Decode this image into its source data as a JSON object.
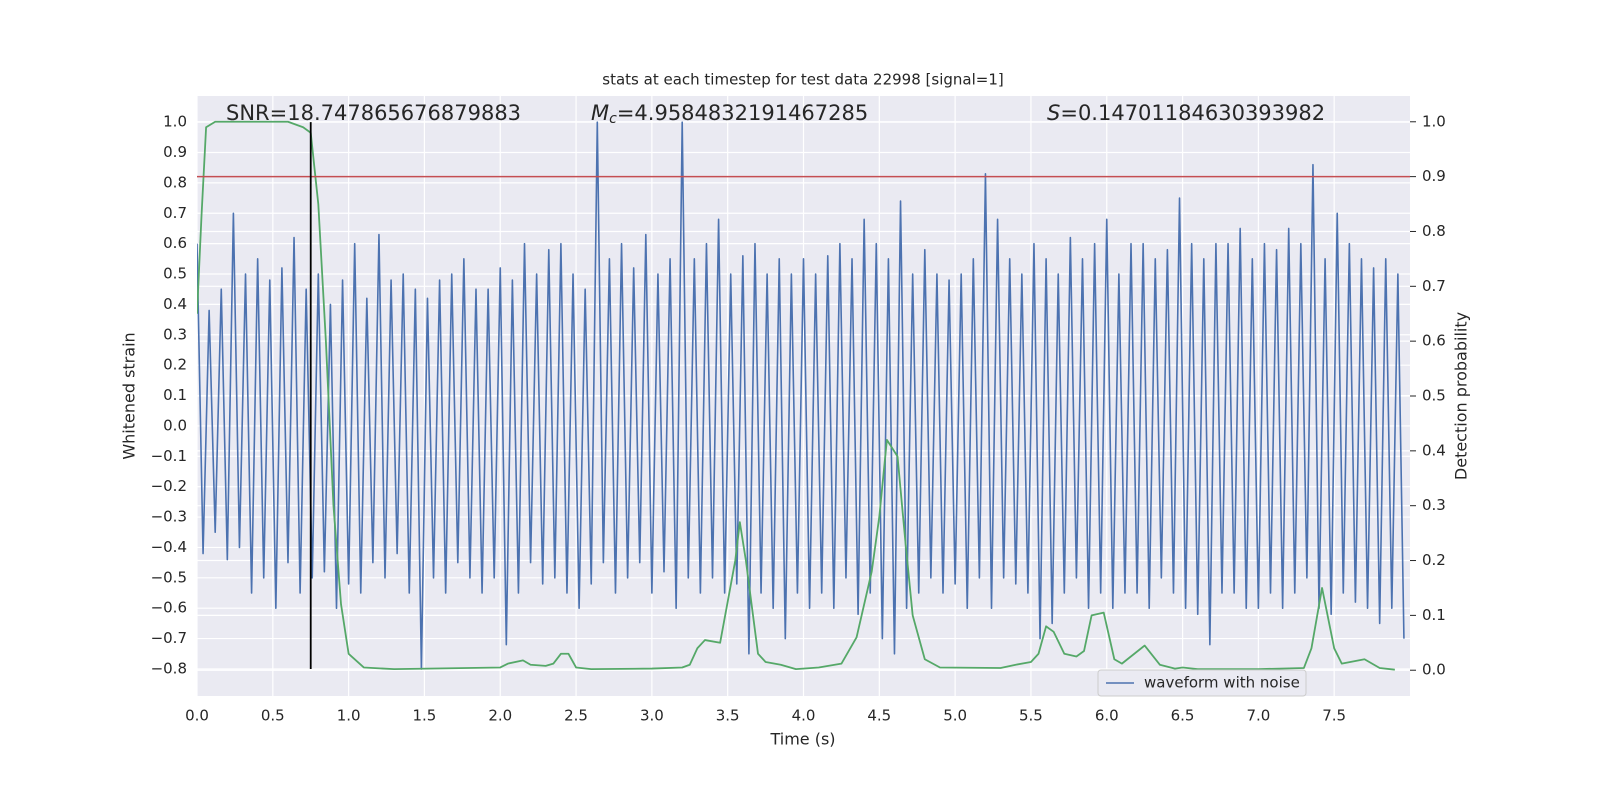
{
  "chart_data": {
    "type": "line",
    "title": "stats at each timestep for test data 22998 [signal=1]",
    "xlabel": "Time (s)",
    "ylabel": "Whitened strain",
    "y2label": "Detection probability",
    "xlim": [
      0,
      8.0
    ],
    "ylim": [
      -0.889,
      1.086
    ],
    "y2lim": [
      -0.047,
      1.047
    ],
    "xticks": [
      {
        "value": 0,
        "label": "0.0"
      },
      {
        "value": 0.5,
        "label": "0.5"
      },
      {
        "value": 1,
        "label": "1.0"
      },
      {
        "value": 1.5,
        "label": "1.5"
      },
      {
        "value": 2,
        "label": "2.0"
      },
      {
        "value": 2.5,
        "label": "2.5"
      },
      {
        "value": 3,
        "label": "3.0"
      },
      {
        "value": 3.5,
        "label": "3.5"
      },
      {
        "value": 4,
        "label": "4.0"
      },
      {
        "value": 4.5,
        "label": "4.5"
      },
      {
        "value": 5,
        "label": "5.0"
      },
      {
        "value": 5.5,
        "label": "5.5"
      },
      {
        "value": 6,
        "label": "6.0"
      },
      {
        "value": 6.5,
        "label": "6.5"
      },
      {
        "value": 7,
        "label": "7.0"
      },
      {
        "value": 7.5,
        "label": "7.5"
      }
    ],
    "yticks": [
      {
        "value": 1,
        "label": "1.0"
      },
      {
        "value": 0.9,
        "label": "0.9"
      },
      {
        "value": 0.8,
        "label": "0.8"
      },
      {
        "value": 0.7,
        "label": "0.7"
      },
      {
        "value": 0.6,
        "label": "0.6"
      },
      {
        "value": 0.5,
        "label": "0.5"
      },
      {
        "value": 0.4,
        "label": "0.4"
      },
      {
        "value": 0.3,
        "label": "0.3"
      },
      {
        "value": 0.2,
        "label": "0.2"
      },
      {
        "value": 0.1,
        "label": "0.1"
      },
      {
        "value": 0,
        "label": "0.0"
      },
      {
        "value": -0.1,
        "label": "−0.1"
      },
      {
        "value": -0.2,
        "label": "−0.2"
      },
      {
        "value": -0.3,
        "label": "−0.3"
      },
      {
        "value": -0.4,
        "label": "−0.4"
      },
      {
        "value": -0.5,
        "label": "−0.5"
      },
      {
        "value": -0.6,
        "label": "−0.6"
      },
      {
        "value": -0.7,
        "label": "−0.7"
      },
      {
        "value": -0.8,
        "label": "−0.8"
      }
    ],
    "y2ticks": [
      {
        "value": 1,
        "label": "1.0"
      },
      {
        "value": 0.9,
        "label": "0.9"
      },
      {
        "value": 0.8,
        "label": "0.8"
      },
      {
        "value": 0.7,
        "label": "0.7"
      },
      {
        "value": 0.6,
        "label": "0.6"
      },
      {
        "value": 0.5,
        "label": "0.5"
      },
      {
        "value": 0.4,
        "label": "0.4"
      },
      {
        "value": 0.3,
        "label": "0.3"
      },
      {
        "value": 0.2,
        "label": "0.2"
      },
      {
        "value": 0.1,
        "label": "0.1"
      },
      {
        "value": 0,
        "label": "0.0"
      }
    ],
    "grid": true,
    "legend": "lower right",
    "threshold": {
      "value": 0.9,
      "axis": "y2",
      "color": "#c44e52"
    },
    "marker_x": {
      "value": 0.75,
      "color": "#000000"
    },
    "annotations": [
      {
        "text": "SNR=18.747865676879883"
      },
      {
        "symbol": "M",
        "sub": "c",
        "text": "=4.9584832191467285"
      },
      {
        "symbol": "S",
        "text": "=0.14701184630393982"
      }
    ],
    "series": [
      {
        "name": "waveform with noise",
        "color": "#4c72b0",
        "x": [
          0,
          0.04,
          0.08,
          0.12,
          0.16,
          0.2,
          0.24,
          0.28,
          0.32,
          0.36,
          0.4,
          0.44,
          0.48,
          0.52,
          0.56,
          0.6,
          0.64,
          0.68,
          0.72,
          0.76,
          0.8,
          0.84,
          0.88,
          0.92,
          0.96,
          1.0,
          1.04,
          1.08,
          1.12,
          1.16,
          1.2,
          1.24,
          1.28,
          1.32,
          1.36,
          1.4,
          1.44,
          1.48,
          1.52,
          1.56,
          1.6,
          1.64,
          1.68,
          1.72,
          1.76,
          1.8,
          1.84,
          1.88,
          1.92,
          1.96,
          2.0,
          2.04,
          2.08,
          2.12,
          2.16,
          2.2,
          2.24,
          2.28,
          2.32,
          2.36,
          2.4,
          2.44,
          2.48,
          2.52,
          2.56,
          2.6,
          2.64,
          2.68,
          2.72,
          2.76,
          2.8,
          2.84,
          2.88,
          2.92,
          2.96,
          3.0,
          3.04,
          3.08,
          3.12,
          3.16,
          3.2,
          3.24,
          3.28,
          3.32,
          3.36,
          3.4,
          3.44,
          3.48,
          3.52,
          3.56,
          3.6,
          3.64,
          3.68,
          3.72,
          3.76,
          3.8,
          3.84,
          3.88,
          3.92,
          3.96,
          4.0,
          4.04,
          4.08,
          4.12,
          4.16,
          4.2,
          4.24,
          4.28,
          4.32,
          4.36,
          4.4,
          4.44,
          4.48,
          4.52,
          4.56,
          4.6,
          4.64,
          4.68,
          4.72,
          4.76,
          4.8,
          4.84,
          4.88,
          4.92,
          4.96,
          5.0,
          5.04,
          5.08,
          5.12,
          5.16,
          5.2,
          5.24,
          5.28,
          5.32,
          5.36,
          5.4,
          5.44,
          5.48,
          5.52,
          5.56,
          5.6,
          5.64,
          5.68,
          5.72,
          5.76,
          5.8,
          5.84,
          5.88,
          5.92,
          5.96,
          6.0,
          6.04,
          6.08,
          6.12,
          6.16,
          6.2,
          6.24,
          6.28,
          6.32,
          6.36,
          6.4,
          6.44,
          6.48,
          6.52,
          6.56,
          6.6,
          6.64,
          6.68,
          6.72,
          6.76,
          6.8,
          6.84,
          6.88,
          6.92,
          6.96,
          7.0,
          7.04,
          7.08,
          7.12,
          7.16,
          7.2,
          7.24,
          7.28,
          7.32,
          7.36,
          7.4,
          7.44,
          7.48,
          7.52,
          7.56,
          7.6,
          7.64,
          7.68,
          7.72,
          7.76,
          7.8,
          7.84,
          7.88,
          7.92,
          7.96
        ],
        "values": [
          0.6,
          -0.42,
          0.38,
          -0.35,
          0.45,
          -0.44,
          0.7,
          -0.4,
          0.5,
          -0.55,
          0.55,
          -0.5,
          0.48,
          -0.6,
          0.52,
          -0.45,
          0.62,
          -0.55,
          0.45,
          -0.5,
          0.5,
          -0.48,
          0.4,
          -0.6,
          0.48,
          -0.52,
          0.6,
          -0.55,
          0.42,
          -0.45,
          0.63,
          -0.5,
          0.48,
          -0.42,
          0.5,
          -0.55,
          0.45,
          -0.8,
          0.42,
          -0.5,
          0.48,
          -0.55,
          0.5,
          -0.45,
          0.55,
          -0.5,
          0.45,
          -0.55,
          0.45,
          -0.5,
          0.52,
          -0.72,
          0.48,
          -0.55,
          0.6,
          -0.45,
          0.5,
          -0.52,
          0.58,
          -0.5,
          0.6,
          -0.55,
          0.5,
          -0.6,
          0.45,
          -0.52,
          1.0,
          -0.45,
          0.55,
          -0.55,
          0.6,
          -0.5,
          0.52,
          -0.45,
          0.63,
          -0.55,
          0.5,
          -0.48,
          0.55,
          -0.6,
          1.0,
          -0.5,
          0.55,
          -0.55,
          0.6,
          -0.5,
          0.68,
          -0.55,
          0.5,
          -0.52,
          0.56,
          -0.75,
          0.6,
          -0.55,
          0.5,
          -0.6,
          0.55,
          -0.7,
          0.5,
          -0.55,
          0.55,
          -0.6,
          0.5,
          -0.55,
          0.56,
          -0.6,
          0.6,
          -0.5,
          0.55,
          -0.62,
          0.68,
          -0.55,
          0.6,
          -0.7,
          0.55,
          -0.75,
          0.74,
          -0.6,
          0.5,
          -0.55,
          0.58,
          -0.5,
          0.5,
          -0.55,
          0.48,
          -0.52,
          0.5,
          -0.6,
          0.55,
          -0.5,
          0.83,
          -0.6,
          0.68,
          -0.5,
          0.55,
          -0.52,
          0.5,
          -0.55,
          0.6,
          -0.7,
          0.55,
          -0.65,
          0.5,
          -0.55,
          0.62,
          -0.5,
          0.55,
          -0.6,
          0.6,
          -0.55,
          0.68,
          -0.6,
          0.5,
          -0.55,
          0.6,
          -0.55,
          0.6,
          -0.6,
          0.55,
          -0.5,
          0.58,
          -0.55,
          0.75,
          -0.6,
          0.6,
          -0.62,
          0.55,
          -0.72,
          0.6,
          -0.55,
          0.6,
          -0.55,
          0.65,
          -0.6,
          0.55,
          -0.6,
          0.6,
          -0.55,
          0.58,
          -0.6,
          0.65,
          -0.55,
          0.6,
          -0.5,
          0.86,
          -0.6,
          0.55,
          -0.62,
          0.7,
          -0.55,
          0.6,
          -0.58,
          0.55,
          -0.6,
          0.52,
          -0.65,
          0.55,
          -0.6,
          0.5,
          -0.7
        ]
      },
      {
        "color": "#55a868",
        "axis": "y2",
        "x": [
          0,
          0.03,
          0.06,
          0.12,
          0.6,
          0.7,
          0.75,
          0.8,
          0.85,
          0.9,
          0.95,
          1.0,
          1.1,
          1.3,
          2.0,
          2.05,
          2.15,
          2.2,
          2.3,
          2.35,
          2.4,
          2.45,
          2.5,
          2.6,
          3.0,
          3.2,
          3.25,
          3.3,
          3.35,
          3.45,
          3.55,
          3.58,
          3.62,
          3.7,
          3.75,
          3.85,
          3.95,
          4.1,
          4.25,
          4.35,
          4.45,
          4.5,
          4.55,
          4.62,
          4.67,
          4.72,
          4.8,
          4.9,
          5.3,
          5.4,
          5.5,
          5.55,
          5.6,
          5.65,
          5.72,
          5.8,
          5.85,
          5.9,
          5.98,
          6.05,
          6.1,
          6.25,
          6.35,
          6.45,
          6.5,
          6.6,
          7.0,
          7.3,
          7.35,
          7.42,
          7.5,
          7.55,
          7.7,
          7.8,
          7.9
        ],
        "values": [
          0.65,
          0.83,
          0.99,
          1.0,
          1.0,
          0.99,
          0.98,
          0.85,
          0.6,
          0.3,
          0.12,
          0.03,
          0.005,
          0.002,
          0.005,
          0.012,
          0.018,
          0.01,
          0.008,
          0.012,
          0.03,
          0.03,
          0.005,
          0.002,
          0.003,
          0.005,
          0.01,
          0.04,
          0.055,
          0.05,
          0.2,
          0.27,
          0.2,
          0.03,
          0.015,
          0.01,
          0.002,
          0.005,
          0.012,
          0.06,
          0.18,
          0.28,
          0.42,
          0.39,
          0.24,
          0.1,
          0.02,
          0.005,
          0.004,
          0.01,
          0.015,
          0.03,
          0.08,
          0.07,
          0.03,
          0.025,
          0.035,
          0.1,
          0.105,
          0.02,
          0.012,
          0.045,
          0.01,
          0.003,
          0.005,
          0.002,
          0.002,
          0.004,
          0.04,
          0.15,
          0.04,
          0.012,
          0.02,
          0.004,
          0.001
        ]
      }
    ]
  }
}
